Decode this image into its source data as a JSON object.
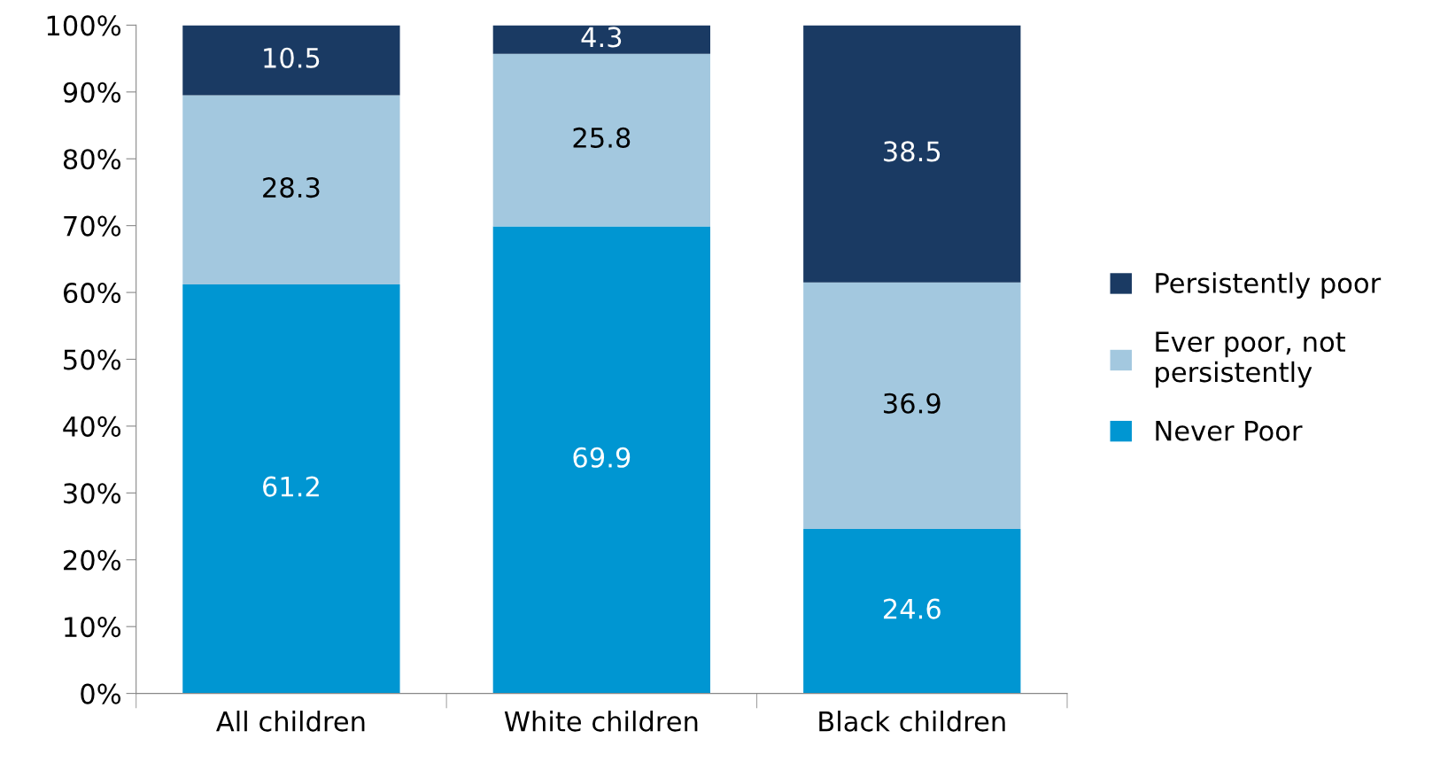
{
  "chart_data": {
    "type": "bar",
    "stacked": true,
    "categories": [
      "All children",
      "White children",
      "Black children"
    ],
    "series": [
      {
        "name": "Never Poor",
        "color": "#0096d2",
        "values": [
          61.2,
          69.9,
          24.6
        ]
      },
      {
        "name": "Ever poor, not\npersistently",
        "color": "#a3c8df",
        "values": [
          28.3,
          25.8,
          36.9
        ]
      },
      {
        "name": "Persistently poor",
        "color": "#1a3a63",
        "values": [
          10.5,
          4.3,
          38.5
        ]
      }
    ],
    "ylim": [
      0,
      100
    ],
    "yticks": [
      {
        "value": 0,
        "label": "0%"
      },
      {
        "value": 10,
        "label": "10%"
      },
      {
        "value": 20,
        "label": "20%"
      },
      {
        "value": 30,
        "label": "30%"
      },
      {
        "value": 40,
        "label": "40%"
      },
      {
        "value": 50,
        "label": "50%"
      },
      {
        "value": 60,
        "label": "60%"
      },
      {
        "value": 70,
        "label": "70%"
      },
      {
        "value": 80,
        "label": "80%"
      },
      {
        "value": 90,
        "label": "90%"
      },
      {
        "value": 100,
        "label": "100%"
      }
    ],
    "data_labels": true,
    "legend": "right",
    "grid": false
  }
}
